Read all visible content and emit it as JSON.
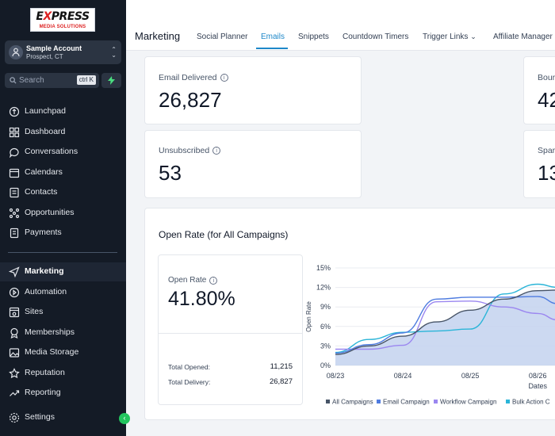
{
  "sidebar": {
    "logo": {
      "line1": "EXPRESS",
      "line2": "MEDIA SOLUTIONS"
    },
    "account": {
      "name": "Sample Account",
      "location": "Prospect, CT"
    },
    "search": {
      "placeholder": "Search",
      "shortcut": "ctrl K"
    },
    "nav": [
      {
        "label": "Launchpad",
        "icon": "rocket-icon"
      },
      {
        "label": "Dashboard",
        "icon": "grid-icon"
      },
      {
        "label": "Conversations",
        "icon": "chat-icon"
      },
      {
        "label": "Calendars",
        "icon": "calendar-icon"
      },
      {
        "label": "Contacts",
        "icon": "contacts-icon"
      },
      {
        "label": "Opportunities",
        "icon": "opportunities-icon"
      },
      {
        "label": "Payments",
        "icon": "payments-icon"
      }
    ],
    "nav2": [
      {
        "label": "Marketing",
        "icon": "send-icon"
      },
      {
        "label": "Automation",
        "icon": "automation-icon"
      },
      {
        "label": "Sites",
        "icon": "sites-icon"
      },
      {
        "label": "Memberships",
        "icon": "badge-icon"
      },
      {
        "label": "Media Storage",
        "icon": "image-icon"
      },
      {
        "label": "Reputation",
        "icon": "star-icon"
      },
      {
        "label": "Reporting",
        "icon": "trend-icon"
      }
    ],
    "settings": "Settings"
  },
  "topbar": {
    "title": "Marketing",
    "tabs": [
      "Social Planner",
      "Emails",
      "Snippets",
      "Countdown Timers",
      "Trigger Links",
      "Affiliate Manager"
    ],
    "active_tab": "Emails"
  },
  "stats": {
    "delivered": {
      "label": "Email Delivered",
      "value": "26,827"
    },
    "unsubscribed": {
      "label": "Unsubscribed",
      "value": "53"
    },
    "bounced": {
      "label": "Bour",
      "value": "42"
    },
    "spam": {
      "label": "Spar",
      "value": "13"
    }
  },
  "open_rate": {
    "title": "Open Rate (for All Campaigns)",
    "label": "Open Rate",
    "value": "41.80%",
    "total_opened_label": "Total Opened:",
    "total_opened": "11,215",
    "total_delivery_label": "Total Delivery:",
    "total_delivery": "26,827"
  },
  "chart_data": {
    "type": "area",
    "ylabel": "Open Rate",
    "xlabel": "Dates",
    "x": [
      "08/23",
      "08/24",
      "08/25",
      "08/26"
    ],
    "ylim": [
      0,
      15
    ],
    "yticks": [
      "0%",
      "3%",
      "6%",
      "9%",
      "12%",
      "15%"
    ],
    "series": [
      {
        "name": "All Campaigns",
        "color": "#475467",
        "points": [
          [
            0,
            1.7
          ],
          [
            0.5,
            3.0
          ],
          [
            1,
            4.5
          ],
          [
            1.5,
            6.7
          ],
          [
            2,
            8.5
          ],
          [
            2.5,
            10.2
          ],
          [
            3,
            11.5
          ],
          [
            3.3,
            11.6
          ]
        ]
      },
      {
        "name": "Email Campaign",
        "color": "#4f7ce0",
        "points": [
          [
            0,
            1.9
          ],
          [
            0.5,
            3.2
          ],
          [
            1,
            5.0
          ],
          [
            1.5,
            10.2
          ],
          [
            2,
            10.5
          ],
          [
            2.5,
            10.5
          ],
          [
            3,
            10.6
          ],
          [
            3.3,
            9.5
          ]
        ]
      },
      {
        "name": "Workflow Campaign",
        "color": "#9b87f0",
        "points": [
          [
            0,
            2.5
          ],
          [
            0.5,
            2.5
          ],
          [
            1,
            3.1
          ],
          [
            1.5,
            9.8
          ],
          [
            2,
            9.9
          ],
          [
            2.5,
            9.0
          ],
          [
            3,
            8.0
          ],
          [
            3.3,
            7.0
          ]
        ]
      },
      {
        "name": "Bulk Action C",
        "color": "#2bb5d8",
        "points": [
          [
            0,
            2.0
          ],
          [
            0.5,
            4.0
          ],
          [
            1,
            5.1
          ],
          [
            1.5,
            5.3
          ],
          [
            2,
            5.6
          ],
          [
            2.5,
            11.0
          ],
          [
            3,
            12.5
          ],
          [
            3.3,
            12.0
          ]
        ]
      }
    ],
    "legend_position": "bottom"
  }
}
